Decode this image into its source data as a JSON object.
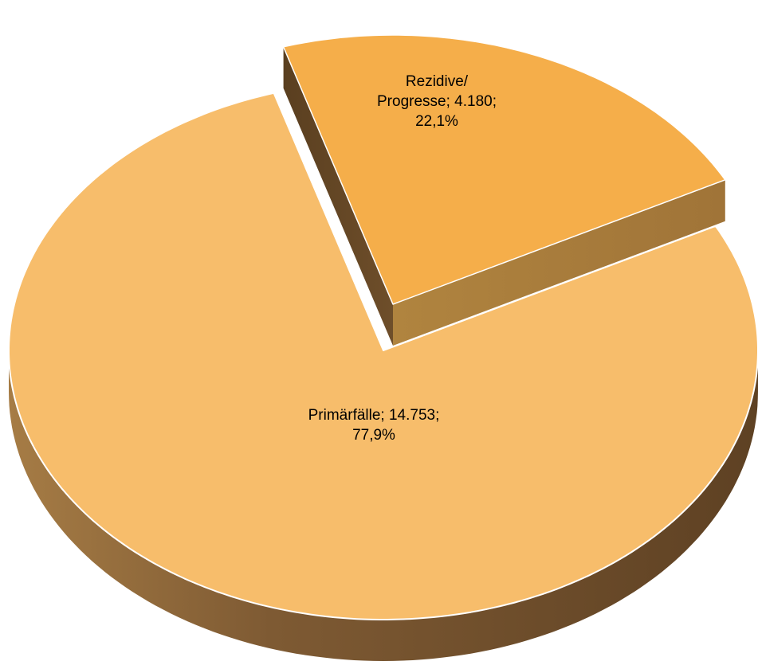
{
  "chart_data": {
    "type": "pie",
    "style": "3d-exploded",
    "title": "",
    "slices": [
      {
        "name": "Primärfälle",
        "value": 14753,
        "percent": 77.9,
        "label_lines": [
          "Primärfälle; 14.753;",
          "77,9%"
        ],
        "color": "#F7BD6B",
        "side_color": "#7A5530",
        "exploded": false
      },
      {
        "name": "Rezidive/ Progresse",
        "value": 4180,
        "percent": 22.1,
        "label_lines": [
          "Rezidive/",
          "Progresse; 4.180;",
          "22,1%"
        ],
        "color": "#F5AE4A",
        "side_color": "#6B4A22",
        "exploded": true
      }
    ]
  }
}
